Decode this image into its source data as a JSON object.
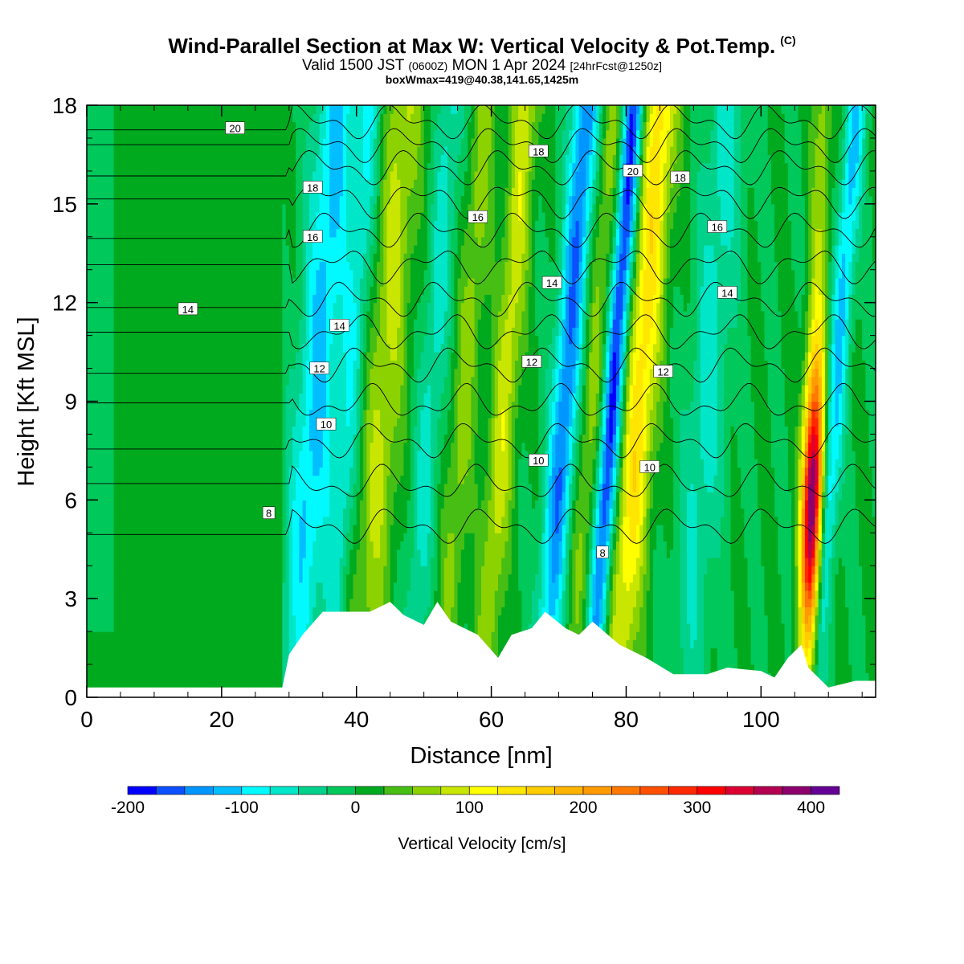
{
  "title": "Wind-Parallel Section at Max W: Vertical Velocity & Pot.Temp.",
  "title_mark": "(C)",
  "subtitle": {
    "valid": "Valid 1500 JST",
    "utc": "(0600Z)",
    "date": "MON 1 Apr 2024",
    "fcst": "[24hrFcst@1250z]"
  },
  "subtitle2": "boxWmax=419@40.38,141.65,1425m",
  "chart_data": {
    "type": "heatmap",
    "xlabel": "Distance [nm]",
    "ylabel": "Height [Kft MSL]",
    "xlim": [
      0,
      117
    ],
    "ylim": [
      0,
      18
    ],
    "x_ticks": [
      0,
      20,
      40,
      60,
      80,
      100
    ],
    "y_ticks": [
      0,
      3,
      6,
      9,
      12,
      15,
      18
    ],
    "grid": false,
    "colorbar": {
      "label": "Vertical Velocity [cm/s]",
      "placement": "bottom",
      "tick_values": [
        -200,
        -100,
        0,
        100,
        200,
        300,
        400
      ],
      "tick_labels": [
        "-200",
        "-100",
        "0",
        "100",
        "200",
        "300",
        "400"
      ],
      "bins": [
        -200,
        -175,
        -150,
        -125,
        -100,
        -75,
        -50,
        -25,
        0,
        25,
        50,
        75,
        100,
        125,
        150,
        175,
        200,
        225,
        250,
        275,
        300,
        325,
        350,
        375,
        400,
        425
      ],
      "colors": [
        "#0000ff",
        "#0a50ff",
        "#0096ff",
        "#00beff",
        "#00faff",
        "#00e6c8",
        "#00d28c",
        "#00c85a",
        "#00aa1e",
        "#46be14",
        "#8cd200",
        "#c8e600",
        "#ffff00",
        "#ffe600",
        "#ffcd00",
        "#ffb400",
        "#ff9b00",
        "#ff7800",
        "#ff5000",
        "#ff2800",
        "#ff0000",
        "#dc0032",
        "#b40050",
        "#8c006e",
        "#640096"
      ]
    },
    "velocity_bands": [
      {
        "x": 0,
        "w": 4,
        "peak": -20
      },
      {
        "x": 34,
        "w": 3,
        "peak": -110
      },
      {
        "x": 39,
        "w": 2,
        "peak": -70
      },
      {
        "x": 44,
        "w": 3,
        "peak": 80
      },
      {
        "x": 51,
        "w": 2,
        "peak": -60
      },
      {
        "x": 56,
        "w": 2,
        "peak": 60
      },
      {
        "x": 62,
        "w": 2,
        "peak": 90
      },
      {
        "x": 71,
        "w": 2,
        "peak": -150
      },
      {
        "x": 75,
        "w": 2,
        "peak": 60
      },
      {
        "x": 78,
        "w": 1.5,
        "peak": -190
      },
      {
        "x": 82,
        "w": 2.5,
        "peak": 140
      },
      {
        "x": 92,
        "w": 3,
        "peak": -60
      },
      {
        "x": 108,
        "w": 1.5,
        "peak": 420
      },
      {
        "x": 111,
        "w": 1.5,
        "peak": -110
      }
    ],
    "terrain": [
      [
        0,
        0.3
      ],
      [
        29,
        0.3
      ],
      [
        30,
        1.3
      ],
      [
        32,
        1.9
      ],
      [
        35,
        2.6
      ],
      [
        42,
        2.6
      ],
      [
        45,
        2.9
      ],
      [
        47,
        2.5
      ],
      [
        50,
        2.2
      ],
      [
        52,
        2.9
      ],
      [
        54,
        2.3
      ],
      [
        58,
        1.9
      ],
      [
        61,
        1.2
      ],
      [
        63,
        1.9
      ],
      [
        66,
        2.1
      ],
      [
        68,
        2.6
      ],
      [
        71,
        2.1
      ],
      [
        73,
        1.9
      ],
      [
        75,
        2.3
      ],
      [
        79,
        1.6
      ],
      [
        83,
        1.2
      ],
      [
        87,
        0.7
      ],
      [
        92,
        0.7
      ],
      [
        95,
        0.9
      ],
      [
        100,
        0.8
      ],
      [
        102,
        0.6
      ],
      [
        104,
        1.2
      ],
      [
        106,
        1.6
      ],
      [
        107,
        0.9
      ],
      [
        110,
        0.3
      ],
      [
        114,
        0.5
      ],
      [
        117,
        0.5
      ]
    ],
    "theta_contours": [
      {
        "label": "8",
        "base": 5.2
      },
      {
        "label": "10",
        "base": 7.8
      },
      {
        "label": "12",
        "base": 10.1
      },
      {
        "label": "14",
        "base": 12.1
      },
      {
        "label": "16",
        "base": 14.2
      },
      {
        "label": "18",
        "base": 16.1
      },
      {
        "label": "20",
        "base": 17.5
      }
    ],
    "contour_labels": [
      {
        "text": "20",
        "x": 22,
        "y": 17.3
      },
      {
        "text": "18",
        "x": 33.5,
        "y": 15.5
      },
      {
        "text": "18",
        "x": 67,
        "y": 16.6
      },
      {
        "text": "20",
        "x": 81,
        "y": 16.0
      },
      {
        "text": "18",
        "x": 88,
        "y": 15.8
      },
      {
        "text": "16",
        "x": 58,
        "y": 14.6
      },
      {
        "text": "16",
        "x": 33.5,
        "y": 14.0
      },
      {
        "text": "16",
        "x": 93.5,
        "y": 14.3
      },
      {
        "text": "14",
        "x": 15,
        "y": 11.8
      },
      {
        "text": "14",
        "x": 69,
        "y": 12.6
      },
      {
        "text": "14",
        "x": 95,
        "y": 12.3
      },
      {
        "text": "14",
        "x": 37.5,
        "y": 11.3
      },
      {
        "text": "12",
        "x": 34.5,
        "y": 10.0
      },
      {
        "text": "12",
        "x": 66,
        "y": 10.2
      },
      {
        "text": "12",
        "x": 85.5,
        "y": 9.9
      },
      {
        "text": "10",
        "x": 35.5,
        "y": 8.3
      },
      {
        "text": "10",
        "x": 67,
        "y": 7.2
      },
      {
        "text": "10",
        "x": 83.5,
        "y": 7.0
      },
      {
        "text": "8",
        "x": 27,
        "y": 5.6
      },
      {
        "text": "8",
        "x": 76.5,
        "y": 4.4
      }
    ]
  }
}
